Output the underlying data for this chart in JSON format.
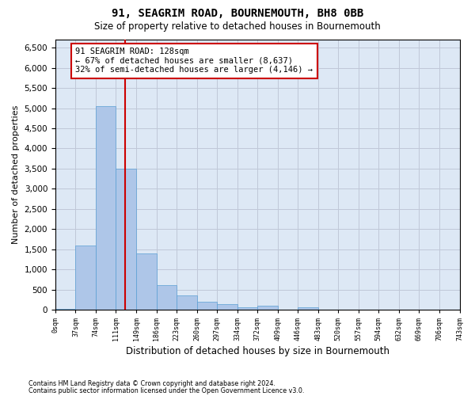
{
  "title": "91, SEAGRIM ROAD, BOURNEMOUTH, BH8 0BB",
  "subtitle": "Size of property relative to detached houses in Bournemouth",
  "xlabel": "Distribution of detached houses by size in Bournemouth",
  "ylabel": "Number of detached properties",
  "footer_line1": "Contains HM Land Registry data © Crown copyright and database right 2024.",
  "footer_line2": "Contains public sector information licensed under the Open Government Licence v3.0.",
  "bin_labels": [
    "0sqm",
    "37sqm",
    "74sqm",
    "111sqm",
    "149sqm",
    "186sqm",
    "223sqm",
    "260sqm",
    "297sqm",
    "334sqm",
    "372sqm",
    "409sqm",
    "446sqm",
    "483sqm",
    "520sqm",
    "557sqm",
    "594sqm",
    "632sqm",
    "669sqm",
    "706sqm",
    "743sqm"
  ],
  "bar_values": [
    30,
    1600,
    5050,
    3500,
    1400,
    600,
    350,
    200,
    130,
    60,
    100,
    0,
    60,
    0,
    0,
    0,
    0,
    0,
    0,
    0
  ],
  "bar_color": "#aec6e8",
  "bar_edge_color": "#5a9fd4",
  "property_label": "91 SEAGRIM ROAD: 128sqm",
  "annotation_line1": "← 67% of detached houses are smaller (8,637)",
  "annotation_line2": "32% of semi-detached houses are larger (4,146) →",
  "vline_color": "#cc0000",
  "annotation_box_color": "#ffffff",
  "annotation_box_edge_color": "#cc0000",
  "ylim": [
    0,
    6700
  ],
  "yticks": [
    0,
    500,
    1000,
    1500,
    2000,
    2500,
    3000,
    3500,
    4000,
    4500,
    5000,
    5500,
    6000,
    6500
  ],
  "grid_color": "#c0c8d8",
  "background_color": "#dde8f5",
  "bin_width": 37,
  "property_size": 128,
  "vline_x": 3.459
}
